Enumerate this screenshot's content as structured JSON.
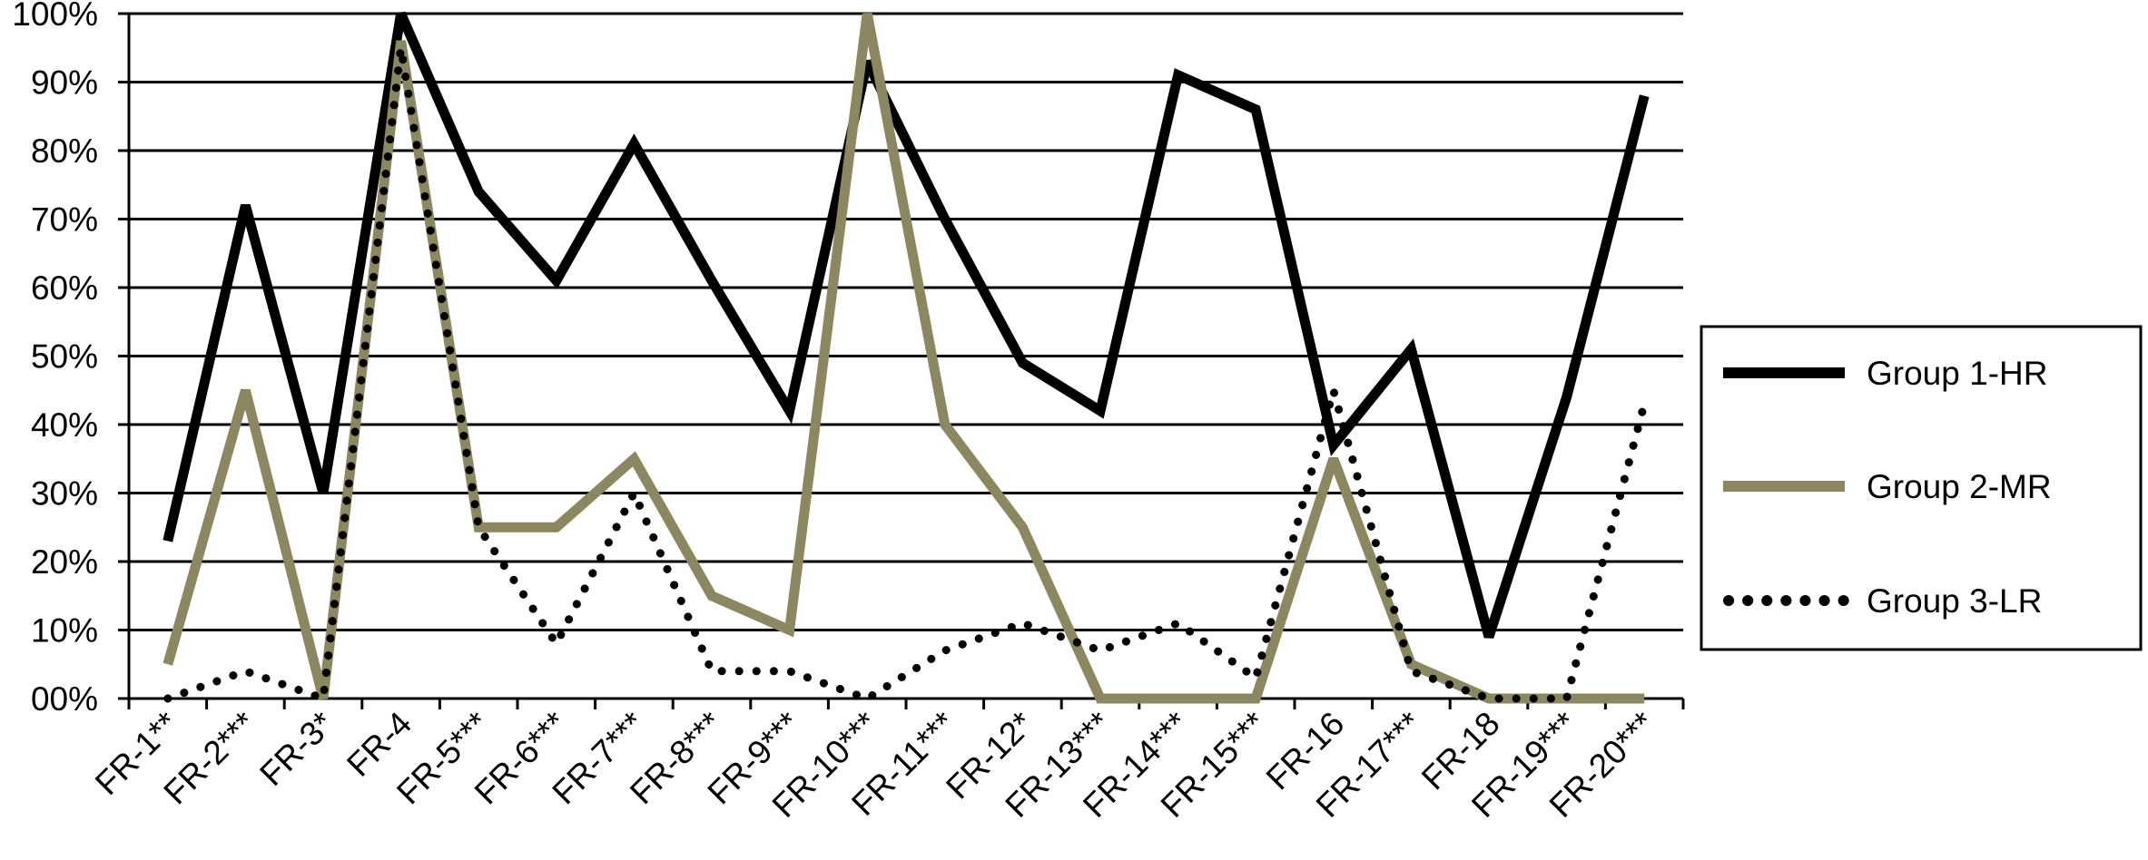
{
  "chart_data": {
    "type": "line",
    "categories": [
      "FR-1**",
      "FR-2***",
      "FR-3*",
      "FR-4",
      "FR-5***",
      "FR-6***",
      "FR-7***",
      "FR-8***",
      "FR-9***",
      "FR-10***",
      "FR-11***",
      "FR-12*",
      "FR-13***",
      "FR-14***",
      "FR-15***",
      "FR-16",
      "FR-17***",
      "FR-18",
      "FR-19***",
      "FR-20***"
    ],
    "y_tick_labels": [
      "00%",
      "10%",
      "20%",
      "30%",
      "40%",
      "50%",
      "60%",
      "70%",
      "80%",
      "90%",
      "100%"
    ],
    "ylim": [
      0,
      100
    ],
    "grid": true,
    "legend_position": "right",
    "series": [
      {
        "name": "Group 1-HR",
        "color": "#000000",
        "style": "solid",
        "values": [
          23,
          72,
          30,
          100,
          74,
          61,
          81,
          61,
          42,
          93,
          70,
          49,
          42,
          91,
          86,
          37,
          51,
          9,
          44,
          88
        ]
      },
      {
        "name": "Group 2-MR",
        "color": "#8b8760",
        "style": "solid",
        "values": [
          5,
          45,
          0,
          96,
          25,
          25,
          35,
          15,
          10,
          100,
          40,
          25,
          0,
          0,
          0,
          35,
          5,
          0,
          0,
          0
        ]
      },
      {
        "name": "Group 3-LR",
        "color": "#000000",
        "style": "dotted",
        "values": [
          0,
          4,
          0,
          95,
          25,
          8,
          30,
          4,
          4,
          0,
          7,
          11,
          7,
          11,
          3,
          45,
          4,
          0,
          0,
          43
        ]
      }
    ]
  }
}
